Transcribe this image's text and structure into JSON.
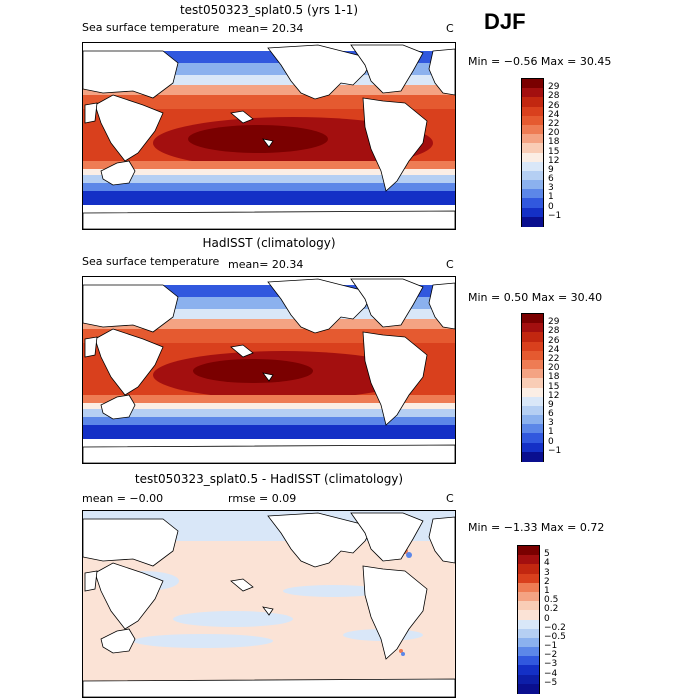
{
  "season": "DJF",
  "land_color": "#ffffff",
  "panels": [
    {
      "id": "model",
      "title": "test050323_splat0.5 (yrs 1-1)",
      "left_label": "Sea surface temperature",
      "mean_text": "mean=  20.34",
      "rmse_text": "",
      "units": "C",
      "minmax": "Min =  −0.56  Max =  30.45",
      "colorbar": {
        "labels": [
          "29",
          "28",
          "26",
          "24",
          "22",
          "20",
          "18",
          "15",
          "12",
          "9",
          "6",
          "3",
          "1",
          "0",
          "−1"
        ],
        "colors": [
          "#7a0000",
          "#a30f0f",
          "#c22710",
          "#d9401d",
          "#e55a30",
          "#ee7c54",
          "#f4a383",
          "#f9cdb6",
          "#fbeee5",
          "#d9e7f8",
          "#b5cff3",
          "#8bb1ee",
          "#5c87e8",
          "#3158de",
          "#1430c6",
          "#0a0f8f"
        ]
      }
    },
    {
      "id": "obs",
      "title": "HadISST (climatology)",
      "left_label": "Sea surface temperature",
      "mean_text": "mean=  20.34",
      "rmse_text": "",
      "units": "C",
      "minmax": "Min =   0.50  Max =  30.40",
      "colorbar": {
        "labels": [
          "29",
          "28",
          "26",
          "24",
          "22",
          "20",
          "18",
          "15",
          "12",
          "9",
          "6",
          "3",
          "1",
          "0",
          "−1"
        ],
        "colors": [
          "#7a0000",
          "#a30f0f",
          "#c22710",
          "#d9401d",
          "#e55a30",
          "#ee7c54",
          "#f4a383",
          "#f9cdb6",
          "#fbeee5",
          "#d9e7f8",
          "#b5cff3",
          "#8bb1ee",
          "#5c87e8",
          "#3158de",
          "#1430c6",
          "#0a0f8f"
        ]
      }
    },
    {
      "id": "diff",
      "title": "test050323_splat0.5 - HadISST (climatology)",
      "left_label": "",
      "mean_text": "mean =  −0.00",
      "rmse_text": "rmse =   0.09",
      "units": "C",
      "minmax": "Min =  −1.33  Max =   0.72",
      "colorbar": {
        "labels": [
          "5",
          "4",
          "3",
          "2",
          "1",
          "0.5",
          "0.2",
          "0",
          "−0.2",
          "−0.5",
          "−1",
          "−2",
          "−3",
          "−4",
          "−5"
        ],
        "colors": [
          "#7a0000",
          "#a30f0f",
          "#c22710",
          "#d9401d",
          "#ee7c54",
          "#f4a383",
          "#f9cdb6",
          "#fbe3d6",
          "#d9e7f8",
          "#b5cff3",
          "#8bb1ee",
          "#5c87e8",
          "#3158de",
          "#1430c6",
          "#0d1ea8",
          "#0a0f8f"
        ]
      }
    }
  ]
}
